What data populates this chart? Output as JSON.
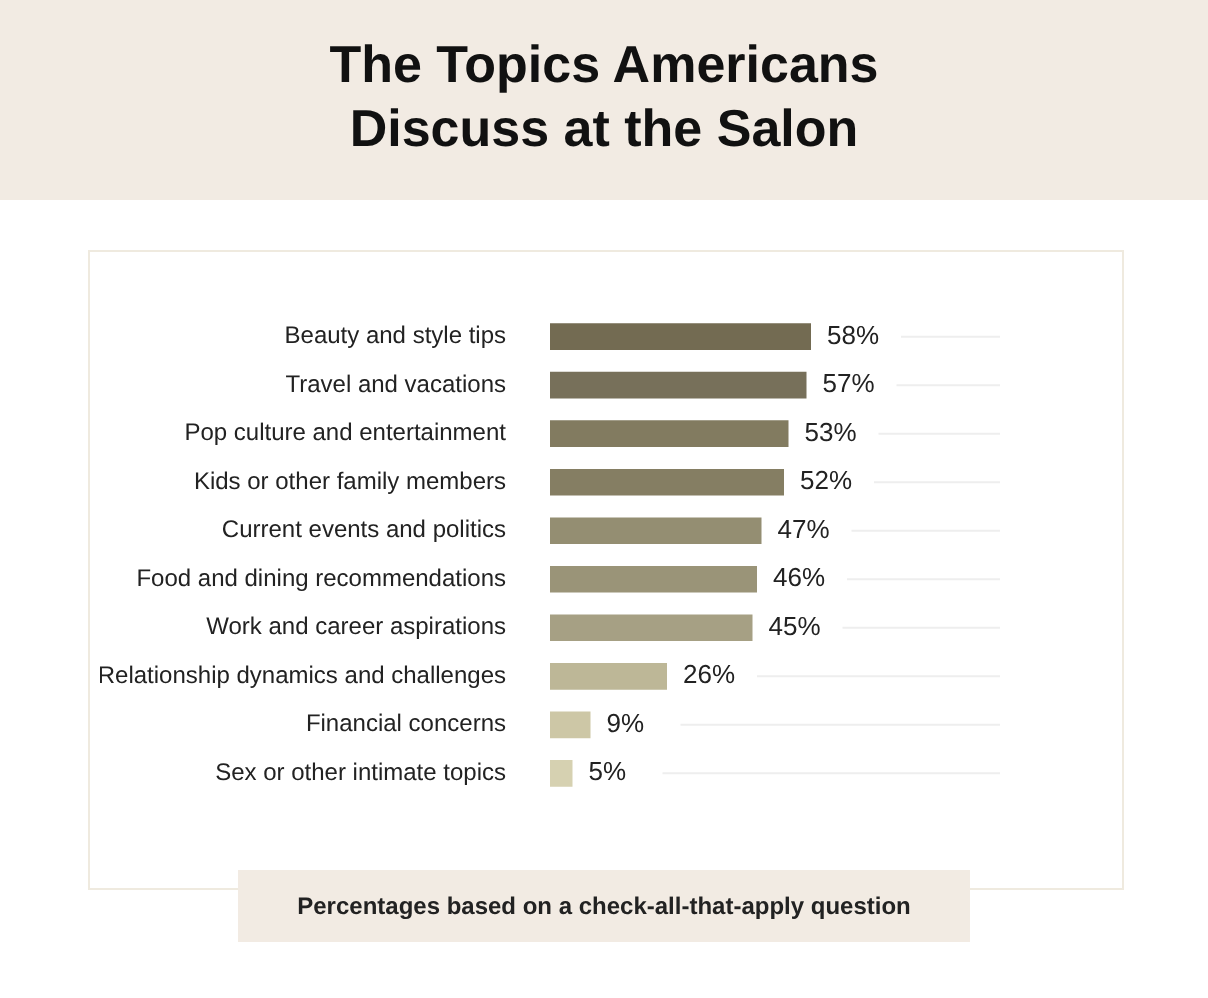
{
  "chart_data": {
    "type": "bar",
    "orientation": "horizontal",
    "title": "The Topics Americans Discuss at the Salon",
    "categories": [
      "Beauty and style tips",
      "Travel and vacations",
      "Pop culture and entertainment",
      "Kids or other family members",
      "Current events and politics",
      "Food and dining recommendations",
      "Work and career aspirations",
      "Relationship dynamics and challenges",
      "Financial concerns",
      "Sex or other intimate topics"
    ],
    "values": [
      58,
      57,
      53,
      52,
      47,
      46,
      45,
      26,
      9,
      5
    ],
    "colors": [
      "#736b52",
      "#77705a",
      "#827b60",
      "#857e63",
      "#948e72",
      "#9a9478",
      "#a6a084",
      "#bdb797",
      "#cdc7a6",
      "#d6d1b1"
    ],
    "value_labels": [
      "58%",
      "57%",
      "53%",
      "52%",
      "47%",
      "46%",
      "45%",
      "26%",
      "9%",
      "5%"
    ],
    "xlim": [
      0,
      100
    ],
    "grid": false,
    "legend": false,
    "annotations": [
      "Percentages based on a check-all-that-apply question"
    ]
  }
}
